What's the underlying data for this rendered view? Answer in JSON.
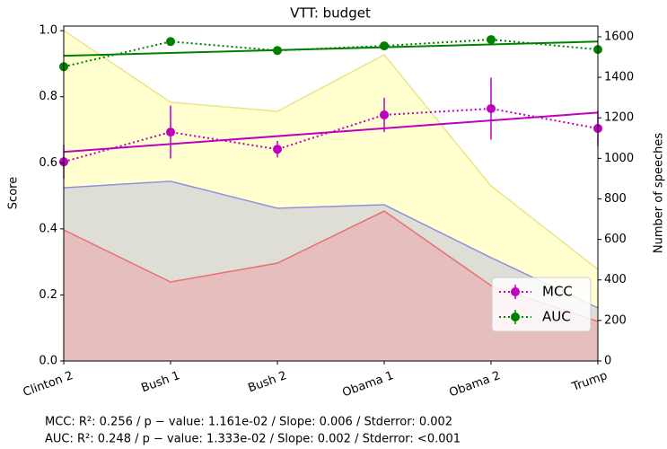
{
  "chart_data": {
    "type": "line",
    "title": "VTT: budget",
    "ylabel": "Score",
    "y2label": "Number of speeches",
    "categories": [
      "Clinton 2",
      "Bush 1",
      "Bush 2",
      "Obama 1",
      "Obama 2",
      "Trump"
    ],
    "ylim": [
      0,
      1.014
    ],
    "yticks": [
      {
        "value": 0,
        "label": "0.0"
      },
      0.2,
      0.4,
      0.6,
      0.8,
      {
        "value": 1,
        "label": "1.0"
      }
    ],
    "y2lim": [
      0,
      1653
    ],
    "y2ticks": [
      0,
      200,
      400,
      600,
      800,
      1000,
      1200,
      1400,
      1600
    ],
    "areas": [
      {
        "color": "#e6e68a",
        "fill": "#ffffc8",
        "axis": "y2",
        "values": [
          1631,
          1277,
          1232,
          1511,
          864,
          452
        ]
      },
      {
        "color": "#9090e0",
        "fill": "#d8d8d8",
        "axis": "y2",
        "values": [
          855,
          887,
          754,
          771,
          510,
          262
        ]
      },
      {
        "color": "#e87070",
        "fill": "#e8b8b8",
        "axis": "y2",
        "values": [
          647,
          390,
          483,
          740,
          372,
          195
        ]
      }
    ],
    "series": [
      {
        "name": "MCC",
        "color": "#bf00bf",
        "values": [
          0.603,
          0.693,
          0.641,
          0.745,
          0.764,
          0.704
        ],
        "errors": [
          0.052,
          0.08,
          0.025,
          0.052,
          0.094,
          0.054
        ],
        "trend": [
          0.633,
          0.752
        ]
      },
      {
        "name": "AUC",
        "color": "#008000",
        "values": [
          0.891,
          0.967,
          0.94,
          0.954,
          0.973,
          0.943
        ],
        "errors": [
          0.01,
          0.008,
          0.008,
          0.008,
          0.008,
          0.012
        ],
        "trend": [
          0.924,
          0.967
        ]
      }
    ],
    "legend": "lower right",
    "footer": [
      "MCC: R²: 0.256 / p − value: 1.161e-02 / Slope: 0.006 / Stderror: 0.002",
      "AUC: R²: 0.248 / p − value: 1.333e-02 / Slope: 0.002 / Stderror: <0.001"
    ]
  }
}
